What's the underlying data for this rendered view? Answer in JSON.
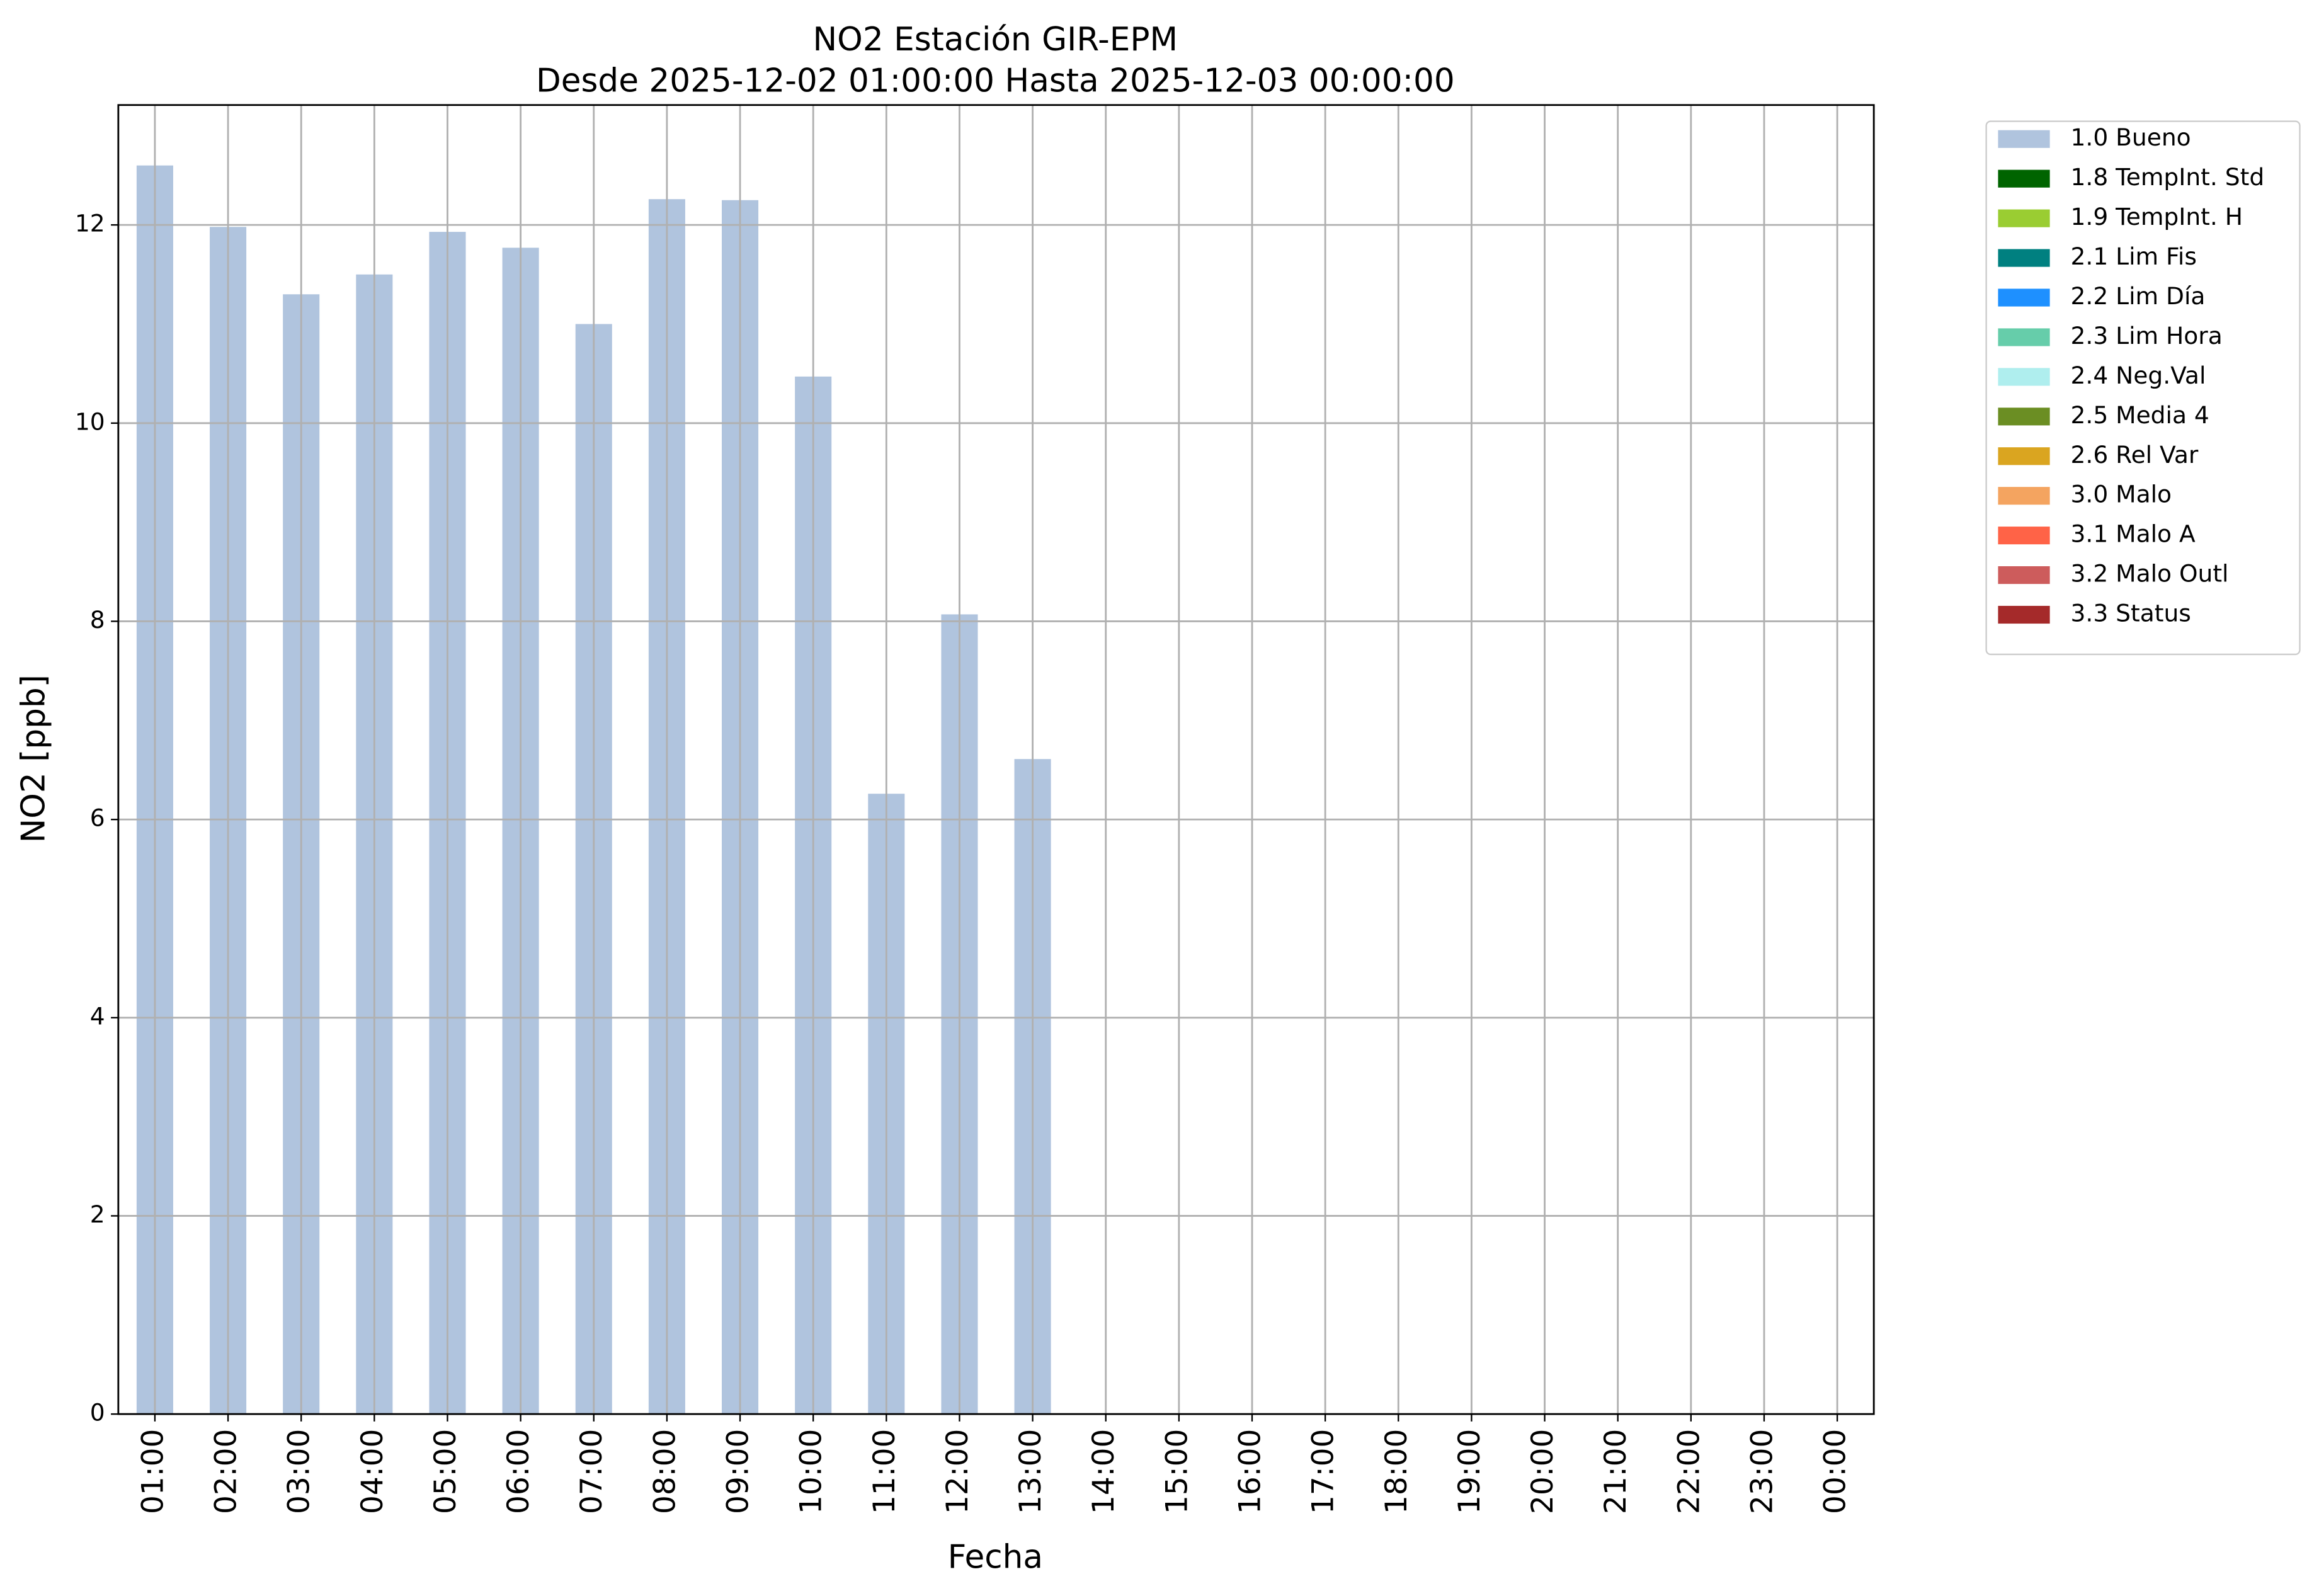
{
  "chart_data": {
    "type": "stacked_bar",
    "title": "NO2 Estación GIR-EPM",
    "subtitle": "Desde 2025-12-02 01:00:00 Hasta 2025-12-03 00:00:00",
    "x_label": "Fecha",
    "y_label": "NO2 [ppb]",
    "categories": [
      "01:00",
      "02:00",
      "03:00",
      "04:00",
      "05:00",
      "06:00",
      "07:00",
      "08:00",
      "09:00",
      "10:00",
      "11:00",
      "12:00",
      "13:00",
      "14:00",
      "15:00",
      "16:00",
      "17:00",
      "18:00",
      "19:00",
      "20:00",
      "21:00",
      "22:00",
      "23:00",
      "00:00"
    ],
    "series": [
      {
        "name": "1.0 Bueno",
        "color": "#b0c4de",
        "values": [
          12.6,
          11.98,
          11.3,
          11.5,
          11.93,
          11.77,
          11.0,
          12.26,
          12.25,
          10.47,
          6.26,
          8.07,
          6.61,
          null,
          null,
          null,
          null,
          null,
          null,
          null,
          null,
          null,
          null,
          null
        ]
      },
      {
        "name": "1.8 TempInt. Std",
        "color": "#006400",
        "values": [
          null,
          null,
          null,
          null,
          null,
          null,
          null,
          null,
          null,
          null,
          null,
          null,
          null,
          null,
          null,
          null,
          null,
          null,
          null,
          null,
          null,
          null,
          null,
          null
        ]
      },
      {
        "name": "1.9 TempInt. H",
        "color": "#9acd32",
        "values": [
          null,
          null,
          null,
          null,
          null,
          null,
          null,
          null,
          null,
          null,
          null,
          null,
          null,
          null,
          null,
          null,
          null,
          null,
          null,
          null,
          null,
          null,
          null,
          null
        ]
      },
      {
        "name": "2.1 Lim Fis",
        "color": "#008080",
        "values": [
          null,
          null,
          null,
          null,
          null,
          null,
          null,
          null,
          null,
          null,
          null,
          null,
          null,
          null,
          null,
          null,
          null,
          null,
          null,
          null,
          null,
          null,
          null,
          null
        ]
      },
      {
        "name": "2.2 Lim Día",
        "color": "#1e90ff",
        "values": [
          null,
          null,
          null,
          null,
          null,
          null,
          null,
          null,
          null,
          null,
          null,
          null,
          null,
          null,
          null,
          null,
          null,
          null,
          null,
          null,
          null,
          null,
          null,
          null
        ]
      },
      {
        "name": "2.3 Lim Hora",
        "color": "#66cdaa",
        "values": [
          null,
          null,
          null,
          null,
          null,
          null,
          null,
          null,
          null,
          null,
          null,
          null,
          null,
          null,
          null,
          null,
          null,
          null,
          null,
          null,
          null,
          null,
          null,
          null
        ]
      },
      {
        "name": "2.4 Neg.Val",
        "color": "#afeeee",
        "values": [
          null,
          null,
          null,
          null,
          null,
          null,
          null,
          null,
          null,
          null,
          null,
          null,
          null,
          null,
          null,
          null,
          null,
          null,
          null,
          null,
          null,
          null,
          null,
          null
        ]
      },
      {
        "name": "2.5 Media 4",
        "color": "#6b8e23",
        "values": [
          null,
          null,
          null,
          null,
          null,
          null,
          null,
          null,
          null,
          null,
          null,
          null,
          null,
          null,
          null,
          null,
          null,
          null,
          null,
          null,
          null,
          null,
          null,
          null
        ]
      },
      {
        "name": "2.6 Rel Var",
        "color": "#daa520",
        "values": [
          null,
          null,
          null,
          null,
          null,
          null,
          null,
          null,
          null,
          null,
          null,
          null,
          null,
          null,
          null,
          null,
          null,
          null,
          null,
          null,
          null,
          null,
          null,
          null
        ]
      },
      {
        "name": "3.0 Malo",
        "color": "#f4a460",
        "values": [
          null,
          null,
          null,
          null,
          null,
          null,
          null,
          null,
          null,
          null,
          null,
          null,
          null,
          null,
          null,
          null,
          null,
          null,
          null,
          null,
          null,
          null,
          null,
          null
        ]
      },
      {
        "name": "3.1 Malo A",
        "color": "#ff6347",
        "values": [
          null,
          null,
          null,
          null,
          null,
          null,
          null,
          null,
          null,
          null,
          null,
          null,
          null,
          null,
          null,
          null,
          null,
          null,
          null,
          null,
          null,
          null,
          null,
          null
        ]
      },
      {
        "name": "3.2 Malo Outl",
        "color": "#cd5c5c",
        "values": [
          null,
          null,
          null,
          null,
          null,
          null,
          null,
          null,
          null,
          null,
          null,
          null,
          null,
          null,
          null,
          null,
          null,
          null,
          null,
          null,
          null,
          null,
          null,
          null
        ]
      },
      {
        "name": "3.3 Status",
        "color": "#a52a2a",
        "values": [
          null,
          null,
          null,
          null,
          null,
          null,
          null,
          null,
          null,
          null,
          null,
          null,
          null,
          null,
          null,
          null,
          null,
          null,
          null,
          null,
          null,
          null,
          null,
          null
        ]
      }
    ],
    "ylim": [
      0,
      13.21
    ],
    "yticks": [
      0,
      2,
      4,
      6,
      8,
      10,
      12
    ],
    "grid": true,
    "legend": "outside right"
  }
}
